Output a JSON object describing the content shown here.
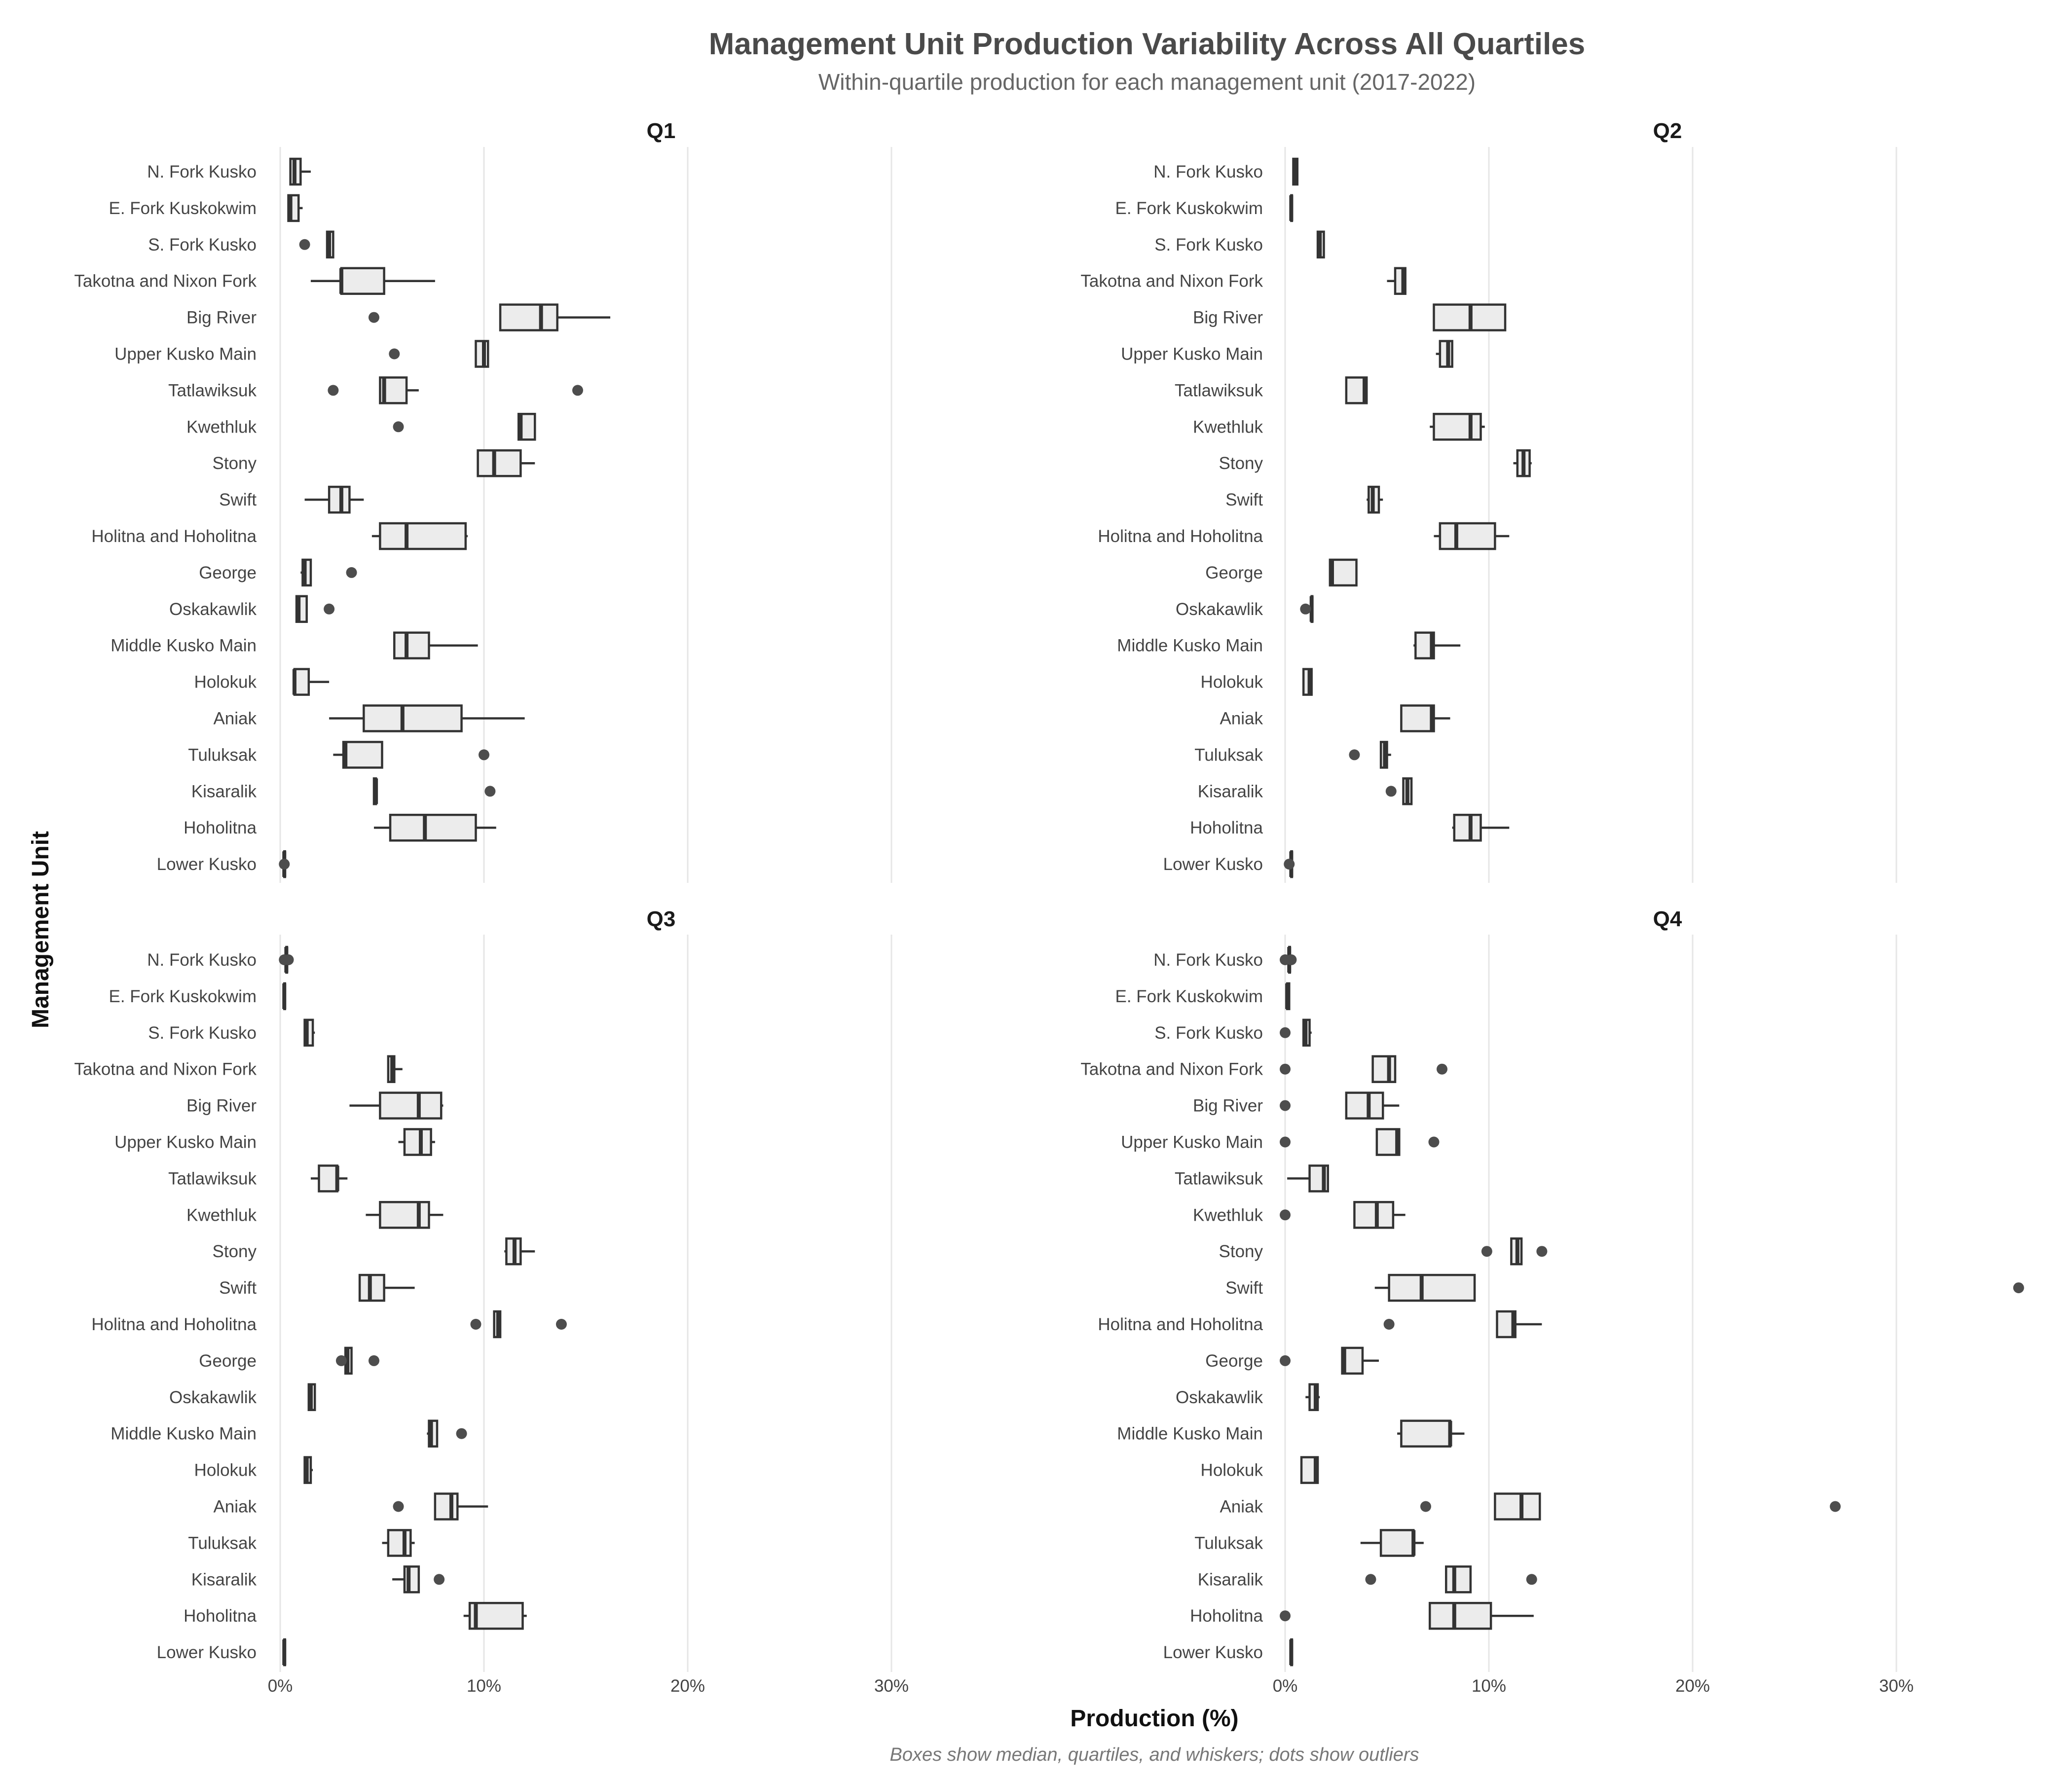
{
  "chart_data": {
    "type": "boxplot",
    "title": "Management Unit Production Variability Across All Quartiles",
    "subtitle": "Within-quartile production for each management unit (2017-2022)",
    "xlabel": "Production (%)",
    "ylabel": "Management Unit",
    "caption": "Boxes show median, quartiles, and whiskers; dots show outliers",
    "xlim": [
      0,
      37
    ],
    "xticks": [
      0,
      10,
      20,
      30
    ],
    "xtick_labels": [
      "0%",
      "10%",
      "20%",
      "30%"
    ],
    "grid": true,
    "categories": [
      "N. Fork Kusko",
      "E. Fork Kuskokwim",
      "S. Fork Kusko",
      "Takotna and Nixon Fork",
      "Big River",
      "Upper Kusko Main",
      "Tatlawiksuk",
      "Kwethluk",
      "Stony",
      "Swift",
      "Holitna and Hoholitna",
      "George",
      "Oskakawlik",
      "Middle Kusko Main",
      "Holokuk",
      "Aniak",
      "Tuluksak",
      "Kisaralik",
      "Hoholitna",
      "Lower Kusko"
    ],
    "panels": [
      {
        "name": "Q1",
        "boxes": [
          {
            "min": 0.5,
            "q1": 0.5,
            "median": 0.7,
            "q3": 1.0,
            "max": 1.5,
            "outliers": []
          },
          {
            "min": 0.4,
            "q1": 0.4,
            "median": 0.5,
            "q3": 0.9,
            "max": 1.1,
            "outliers": []
          },
          {
            "min": 2.3,
            "q1": 2.3,
            "median": 2.4,
            "q3": 2.6,
            "max": 2.6,
            "outliers": [
              1.2
            ]
          },
          {
            "min": 1.5,
            "q1": 3.0,
            "median": 3.0,
            "q3": 5.1,
            "max": 7.6,
            "outliers": []
          },
          {
            "min": 10.8,
            "q1": 10.8,
            "median": 12.8,
            "q3": 13.6,
            "max": 16.2,
            "outliers": [
              4.6
            ]
          },
          {
            "min": 9.6,
            "q1": 9.6,
            "median": 10.0,
            "q3": 10.2,
            "max": 10.2,
            "outliers": [
              5.6
            ]
          },
          {
            "min": 4.9,
            "q1": 4.9,
            "median": 5.1,
            "q3": 6.2,
            "max": 6.8,
            "outliers": [
              2.6,
              14.6
            ]
          },
          {
            "min": 11.7,
            "q1": 11.7,
            "median": 11.8,
            "q3": 12.5,
            "max": 12.5,
            "outliers": [
              5.8
            ]
          },
          {
            "min": 9.7,
            "q1": 9.7,
            "median": 10.5,
            "q3": 11.8,
            "max": 12.5,
            "outliers": []
          },
          {
            "min": 1.2,
            "q1": 2.4,
            "median": 3.0,
            "q3": 3.4,
            "max": 4.1,
            "outliers": []
          },
          {
            "min": 4.5,
            "q1": 4.9,
            "median": 6.2,
            "q3": 9.1,
            "max": 9.2,
            "outliers": []
          },
          {
            "min": 1.0,
            "q1": 1.1,
            "median": 1.2,
            "q3": 1.5,
            "max": 1.5,
            "outliers": [
              3.5
            ]
          },
          {
            "min": 0.8,
            "q1": 0.8,
            "median": 0.9,
            "q3": 1.3,
            "max": 1.3,
            "outliers": [
              2.4
            ]
          },
          {
            "min": 5.6,
            "q1": 5.6,
            "median": 6.2,
            "q3": 7.3,
            "max": 9.7,
            "outliers": []
          },
          {
            "min": 0.7,
            "q1": 0.7,
            "median": 0.7,
            "q3": 1.4,
            "max": 2.4,
            "outliers": []
          },
          {
            "min": 2.4,
            "q1": 4.1,
            "median": 6.0,
            "q3": 8.9,
            "max": 12.0,
            "outliers": []
          },
          {
            "min": 2.6,
            "q1": 3.1,
            "median": 3.2,
            "q3": 5.0,
            "max": 5.0,
            "outliers": [
              10.0
            ]
          },
          {
            "min": 4.6,
            "q1": 4.6,
            "median": 4.7,
            "q3": 4.7,
            "max": 4.7,
            "outliers": [
              10.3
            ]
          },
          {
            "min": 4.6,
            "q1": 5.4,
            "median": 7.1,
            "q3": 9.6,
            "max": 10.6,
            "outliers": []
          },
          {
            "min": 0.2,
            "q1": 0.2,
            "median": 0.2,
            "q3": 0.2,
            "max": 0.2,
            "outliers": [
              0.2
            ]
          }
        ]
      },
      {
        "name": "Q2",
        "boxes": [
          {
            "min": 0.4,
            "q1": 0.4,
            "median": 0.5,
            "q3": 0.6,
            "max": 0.6,
            "outliers": []
          },
          {
            "min": 0.3,
            "q1": 0.3,
            "median": 0.3,
            "q3": 0.3,
            "max": 0.3,
            "outliers": []
          },
          {
            "min": 1.6,
            "q1": 1.6,
            "median": 1.7,
            "q3": 1.9,
            "max": 1.9,
            "outliers": []
          },
          {
            "min": 5.0,
            "q1": 5.4,
            "median": 5.8,
            "q3": 5.9,
            "max": 5.9,
            "outliers": []
          },
          {
            "min": 7.3,
            "q1": 7.3,
            "median": 9.1,
            "q3": 10.8,
            "max": 10.8,
            "outliers": []
          },
          {
            "min": 7.4,
            "q1": 7.6,
            "median": 8.0,
            "q3": 8.2,
            "max": 8.2,
            "outliers": []
          },
          {
            "min": 3.0,
            "q1": 3.0,
            "median": 3.9,
            "q3": 4.0,
            "max": 4.0,
            "outliers": []
          },
          {
            "min": 7.1,
            "q1": 7.3,
            "median": 9.1,
            "q3": 9.6,
            "max": 9.8,
            "outliers": []
          },
          {
            "min": 11.2,
            "q1": 11.4,
            "median": 11.7,
            "q3": 12.0,
            "max": 12.1,
            "outliers": []
          },
          {
            "min": 4.0,
            "q1": 4.1,
            "median": 4.3,
            "q3": 4.6,
            "max": 4.8,
            "outliers": []
          },
          {
            "min": 7.3,
            "q1": 7.6,
            "median": 8.4,
            "q3": 10.3,
            "max": 11.0,
            "outliers": []
          },
          {
            "min": 2.2,
            "q1": 2.2,
            "median": 2.3,
            "q3": 3.5,
            "max": 3.5,
            "outliers": []
          },
          {
            "min": 1.3,
            "q1": 1.3,
            "median": 1.3,
            "q3": 1.3,
            "max": 1.3,
            "outliers": [
              1.0
            ]
          },
          {
            "min": 6.3,
            "q1": 6.4,
            "median": 7.2,
            "q3": 7.3,
            "max": 8.6,
            "outliers": []
          },
          {
            "min": 0.9,
            "q1": 0.9,
            "median": 1.2,
            "q3": 1.3,
            "max": 1.3,
            "outliers": []
          },
          {
            "min": 5.7,
            "q1": 5.7,
            "median": 7.2,
            "q3": 7.3,
            "max": 8.1,
            "outliers": []
          },
          {
            "min": 4.7,
            "q1": 4.7,
            "median": 4.9,
            "q3": 5.0,
            "max": 5.2,
            "outliers": [
              3.4
            ]
          },
          {
            "min": 5.8,
            "q1": 5.8,
            "median": 6.0,
            "q3": 6.2,
            "max": 6.2,
            "outliers": [
              5.2
            ]
          },
          {
            "min": 8.2,
            "q1": 8.3,
            "median": 9.1,
            "q3": 9.6,
            "max": 11.0,
            "outliers": []
          },
          {
            "min": 0.3,
            "q1": 0.3,
            "median": 0.3,
            "q3": 0.3,
            "max": 0.3,
            "outliers": [
              0.2
            ]
          }
        ]
      },
      {
        "name": "Q3",
        "boxes": [
          {
            "min": 0.3,
            "q1": 0.3,
            "median": 0.3,
            "q3": 0.3,
            "max": 0.3,
            "outliers": [
              0.2,
              0.4
            ]
          },
          {
            "min": 0.2,
            "q1": 0.2,
            "median": 0.2,
            "q3": 0.2,
            "max": 0.2,
            "outliers": []
          },
          {
            "min": 1.2,
            "q1": 1.2,
            "median": 1.3,
            "q3": 1.6,
            "max": 1.7,
            "outliers": []
          },
          {
            "min": 5.3,
            "q1": 5.3,
            "median": 5.5,
            "q3": 5.6,
            "max": 6.0,
            "outliers": []
          },
          {
            "min": 3.4,
            "q1": 4.9,
            "median": 6.8,
            "q3": 7.9,
            "max": 8.0,
            "outliers": []
          },
          {
            "min": 5.8,
            "q1": 6.1,
            "median": 6.9,
            "q3": 7.4,
            "max": 7.6,
            "outliers": []
          },
          {
            "min": 1.5,
            "q1": 1.9,
            "median": 2.8,
            "q3": 2.8,
            "max": 3.3,
            "outliers": []
          },
          {
            "min": 4.2,
            "q1": 4.9,
            "median": 6.8,
            "q3": 7.3,
            "max": 8.0,
            "outliers": []
          },
          {
            "min": 11.0,
            "q1": 11.1,
            "median": 11.5,
            "q3": 11.8,
            "max": 12.5,
            "outliers": []
          },
          {
            "min": 3.9,
            "q1": 3.9,
            "median": 4.4,
            "q3": 5.1,
            "max": 6.6,
            "outliers": []
          },
          {
            "min": 10.5,
            "q1": 10.5,
            "median": 10.7,
            "q3": 10.8,
            "max": 10.8,
            "outliers": [
              9.6,
              13.8
            ]
          },
          {
            "min": 3.2,
            "q1": 3.2,
            "median": 3.3,
            "q3": 3.5,
            "max": 3.5,
            "outliers": [
              3.0,
              4.6
            ]
          },
          {
            "min": 1.4,
            "q1": 1.4,
            "median": 1.5,
            "q3": 1.7,
            "max": 1.7,
            "outliers": []
          },
          {
            "min": 7.2,
            "q1": 7.3,
            "median": 7.4,
            "q3": 7.7,
            "max": 7.7,
            "outliers": [
              8.9
            ]
          },
          {
            "min": 1.2,
            "q1": 1.2,
            "median": 1.3,
            "q3": 1.5,
            "max": 1.6,
            "outliers": []
          },
          {
            "min": 7.6,
            "q1": 7.6,
            "median": 8.4,
            "q3": 8.7,
            "max": 10.2,
            "outliers": [
              5.8
            ]
          },
          {
            "min": 5.0,
            "q1": 5.3,
            "median": 6.1,
            "q3": 6.4,
            "max": 6.6,
            "outliers": []
          },
          {
            "min": 5.5,
            "q1": 6.1,
            "median": 6.3,
            "q3": 6.8,
            "max": 6.8,
            "outliers": [
              7.8
            ]
          },
          {
            "min": 9.0,
            "q1": 9.3,
            "median": 9.6,
            "q3": 11.9,
            "max": 12.1,
            "outliers": []
          },
          {
            "min": 0.2,
            "q1": 0.2,
            "median": 0.2,
            "q3": 0.2,
            "max": 0.2,
            "outliers": []
          }
        ]
      },
      {
        "name": "Q4",
        "boxes": [
          {
            "min": 0.2,
            "q1": 0.2,
            "median": 0.2,
            "q3": 0.2,
            "max": 0.2,
            "outliers": [
              0.0,
              0.3
            ]
          },
          {
            "min": 0.1,
            "q1": 0.1,
            "median": 0.1,
            "q3": 0.2,
            "max": 0.2,
            "outliers": []
          },
          {
            "min": 0.9,
            "q1": 0.9,
            "median": 1.0,
            "q3": 1.2,
            "max": 1.3,
            "outliers": [
              0.0
            ]
          },
          {
            "min": 4.3,
            "q1": 4.3,
            "median": 5.1,
            "q3": 5.4,
            "max": 5.4,
            "outliers": [
              0.0,
              7.7
            ]
          },
          {
            "min": 3.0,
            "q1": 3.0,
            "median": 4.1,
            "q3": 4.8,
            "max": 5.6,
            "outliers": [
              0.0
            ]
          },
          {
            "min": 4.5,
            "q1": 4.5,
            "median": 5.5,
            "q3": 5.6,
            "max": 5.6,
            "outliers": [
              0.0,
              7.3
            ]
          },
          {
            "min": 0.1,
            "q1": 1.2,
            "median": 1.9,
            "q3": 2.1,
            "max": 2.1,
            "outliers": []
          },
          {
            "min": 3.4,
            "q1": 3.4,
            "median": 4.5,
            "q3": 5.3,
            "max": 5.9,
            "outliers": [
              0.0
            ]
          },
          {
            "min": 11.1,
            "q1": 11.1,
            "median": 11.4,
            "q3": 11.6,
            "max": 11.6,
            "outliers": [
              9.9,
              12.6
            ]
          },
          {
            "min": 4.4,
            "q1": 5.1,
            "median": 6.7,
            "q3": 9.3,
            "max": 9.3,
            "outliers": [
              36.0
            ]
          },
          {
            "min": 10.4,
            "q1": 10.4,
            "median": 11.2,
            "q3": 11.3,
            "max": 12.6,
            "outliers": [
              5.1
            ]
          },
          {
            "min": 2.8,
            "q1": 2.8,
            "median": 2.9,
            "q3": 3.8,
            "max": 4.6,
            "outliers": [
              0.0
            ]
          },
          {
            "min": 1.0,
            "q1": 1.2,
            "median": 1.5,
            "q3": 1.6,
            "max": 1.7,
            "outliers": []
          },
          {
            "min": 5.5,
            "q1": 5.7,
            "median": 8.1,
            "q3": 8.1,
            "max": 8.8,
            "outliers": []
          },
          {
            "min": 0.8,
            "q1": 0.8,
            "median": 1.5,
            "q3": 1.6,
            "max": 1.6,
            "outliers": []
          },
          {
            "min": 10.3,
            "q1": 10.3,
            "median": 11.6,
            "q3": 12.5,
            "max": 12.5,
            "outliers": [
              6.9,
              27.0
            ]
          },
          {
            "min": 3.7,
            "q1": 4.7,
            "median": 6.3,
            "q3": 6.3,
            "max": 6.8,
            "outliers": []
          },
          {
            "min": 7.9,
            "q1": 7.9,
            "median": 8.3,
            "q3": 9.1,
            "max": 9.1,
            "outliers": [
              4.2,
              12.1
            ]
          },
          {
            "min": 7.1,
            "q1": 7.1,
            "median": 8.3,
            "q3": 10.1,
            "max": 12.2,
            "outliers": [
              0.0
            ]
          },
          {
            "min": 0.3,
            "q1": 0.3,
            "median": 0.3,
            "q3": 0.3,
            "max": 0.3,
            "outliers": []
          }
        ]
      }
    ]
  }
}
